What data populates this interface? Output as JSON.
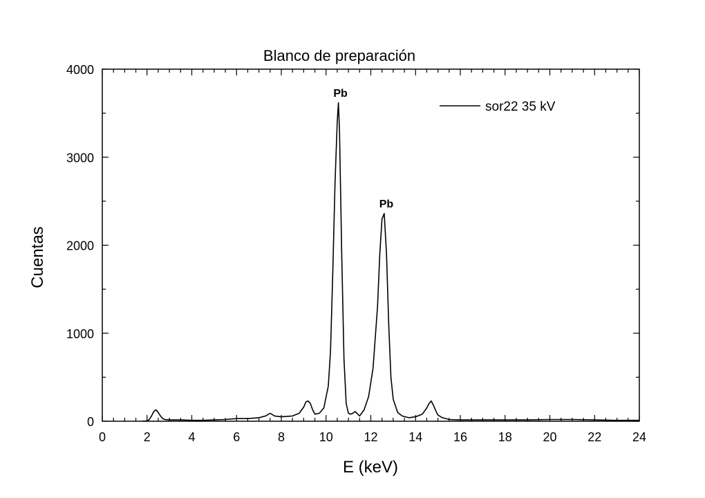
{
  "chart_data": {
    "type": "line",
    "title": "Blanco de preparación",
    "xlabel": "E (keV)",
    "ylabel": "Cuentas",
    "xlim": [
      0,
      24
    ],
    "ylim": [
      0,
      4000
    ],
    "xticks": [
      0,
      2,
      4,
      6,
      8,
      10,
      12,
      14,
      16,
      18,
      20,
      22,
      24
    ],
    "yticks": [
      0,
      1000,
      2000,
      3000,
      4000
    ],
    "grid": false,
    "legend": {
      "placement": "top-right",
      "entries": [
        "sor22 35 kV"
      ]
    },
    "annotations": [
      {
        "text": "Pb",
        "x": 10.55,
        "y": 3640
      },
      {
        "text": "Pb",
        "x": 12.6,
        "y": 2380
      }
    ],
    "series": [
      {
        "name": "sor22 35 kV",
        "color": "#000000",
        "x": [
          1.8,
          2.0,
          2.1,
          2.2,
          2.3,
          2.4,
          2.5,
          2.6,
          2.7,
          2.8,
          3.0,
          3.5,
          4.0,
          4.5,
          5.0,
          5.5,
          6.0,
          6.5,
          7.0,
          7.3,
          7.5,
          7.7,
          8.0,
          8.5,
          8.8,
          9.0,
          9.1,
          9.2,
          9.3,
          9.4,
          9.5,
          9.7,
          9.9,
          10.1,
          10.2,
          10.3,
          10.4,
          10.5,
          10.55,
          10.6,
          10.7,
          10.8,
          10.9,
          11.0,
          11.1,
          11.2,
          11.3,
          11.5,
          11.7,
          11.9,
          12.1,
          12.3,
          12.4,
          12.5,
          12.6,
          12.7,
          12.8,
          12.9,
          13.0,
          13.2,
          13.4,
          13.7,
          14.0,
          14.3,
          14.5,
          14.6,
          14.7,
          14.8,
          14.9,
          15.0,
          15.2,
          15.5,
          16.0,
          17.0,
          18.0,
          19.0,
          20.0,
          21.0,
          22.0,
          23.0,
          24.0
        ],
        "y": [
          0,
          5,
          20,
          60,
          110,
          130,
          100,
          60,
          30,
          20,
          15,
          15,
          10,
          10,
          15,
          20,
          30,
          30,
          40,
          60,
          90,
          60,
          50,
          60,
          90,
          160,
          220,
          230,
          200,
          130,
          80,
          90,
          150,
          400,
          800,
          1700,
          2700,
          3400,
          3620,
          3300,
          1900,
          700,
          200,
          90,
          80,
          90,
          110,
          60,
          130,
          280,
          600,
          1300,
          1900,
          2300,
          2360,
          1900,
          1100,
          500,
          250,
          100,
          60,
          40,
          50,
          80,
          150,
          200,
          230,
          180,
          120,
          70,
          40,
          20,
          15,
          15,
          15,
          15,
          20,
          20,
          15,
          10,
          10
        ]
      }
    ]
  }
}
